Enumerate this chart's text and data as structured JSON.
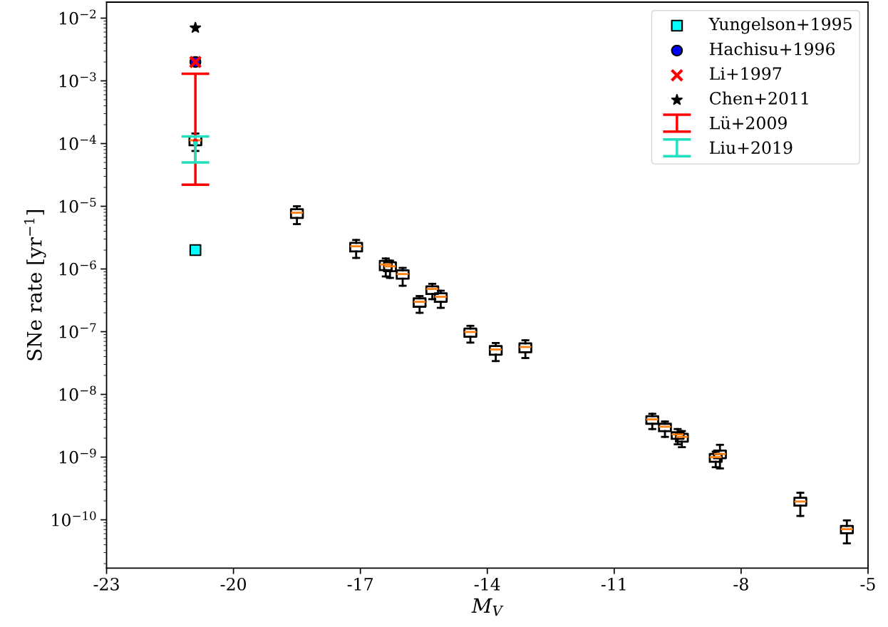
{
  "chart_data": {
    "type": "box",
    "xlabel": "M$_{V}$",
    "ylabel": "SNe rate [yr$^{−1}$]",
    "log": "y",
    "xlim": [
      -23,
      -5
    ],
    "xticks": [
      -23,
      -20,
      -17,
      -14,
      -11,
      -8,
      -5
    ],
    "ylim": [
      1.7e-11,
      0.018
    ],
    "yticks": [
      {
        "value": 1e-10,
        "label": "10$^{−10}$"
      },
      {
        "value": 1e-09,
        "label": "10$^{−9}$"
      },
      {
        "value": 1e-08,
        "label": "10$^{−8}$"
      },
      {
        "value": 1e-07,
        "label": "10$^{−7}$"
      },
      {
        "value": 1e-06,
        "label": "10$^{−6}$"
      },
      {
        "value": 1e-05,
        "label": "10$^{−5}$"
      },
      {
        "value": 0.0001,
        "label": "10$^{−4}$"
      },
      {
        "value": 0.001,
        "label": "10$^{−3}$"
      },
      {
        "value": 0.01,
        "label": "10$^{−2}$"
      }
    ],
    "grid": false,
    "legend": "top right",
    "series": [
      {
        "color": "#000000",
        "x": [
          -20.9,
          -18.5,
          -17.1,
          -16.4,
          -16.3,
          -16.0,
          -15.6,
          -15.3,
          -15.1,
          -14.4,
          -13.8,
          -13.1,
          -10.1,
          -9.8,
          -9.5,
          -9.4,
          -8.6,
          -8.5,
          -6.6,
          -5.5
        ],
        "boxes": [
          {
            "low": 7.6e-05,
            "q1": 9.4e-05,
            "median": 0.000113,
            "q3": 0.00013,
            "high": 0.000145
          },
          {
            "low": 5.2e-06,
            "q1": 6.5e-06,
            "median": 7.9e-06,
            "q3": 9e-06,
            "high": 1e-05
          },
          {
            "low": 1.5e-06,
            "q1": 1.9e-06,
            "median": 2.3e-06,
            "q3": 2.6e-06,
            "high": 2.9e-06
          },
          {
            "low": 7.6e-07,
            "q1": 9.6e-07,
            "median": 1.18e-06,
            "q3": 1.35e-06,
            "high": 1.47e-06
          },
          {
            "low": 7.2e-07,
            "q1": 9.2e-07,
            "median": 1.1e-06,
            "q3": 1.28e-06,
            "high": 1.36e-06
          },
          {
            "low": 5.4e-07,
            "q1": 7e-07,
            "median": 8.3e-07,
            "q3": 9.5e-07,
            "high": 1.04e-06
          },
          {
            "low": 2e-07,
            "q1": 2.5e-07,
            "median": 3e-07,
            "q3": 3.4e-07,
            "high": 3.7e-07
          },
          {
            "low": 3.3e-07,
            "q1": 4e-07,
            "median": 4.8e-07,
            "q3": 5.3e-07,
            "high": 5.8e-07
          },
          {
            "low": 2.4e-07,
            "q1": 3e-07,
            "median": 3.6e-07,
            "q3": 4.1e-07,
            "high": 4.5e-07
          },
          {
            "low": 6.7e-08,
            "q1": 8.3e-08,
            "median": 9.9e-08,
            "q3": 1.12e-07,
            "high": 1.24e-07
          },
          {
            "low": 3.4e-08,
            "q1": 4.3e-08,
            "median": 5.2e-08,
            "q3": 5.9e-08,
            "high": 6.6e-08
          },
          {
            "low": 3.8e-08,
            "q1": 4.7e-08,
            "median": 5.7e-08,
            "q3": 6.5e-08,
            "high": 7.3e-08
          },
          {
            "low": 2.8e-09,
            "q1": 3.4e-09,
            "median": 4e-09,
            "q3": 4.5e-09,
            "high": 4.9e-09
          },
          {
            "low": 2.1e-09,
            "q1": 2.6e-09,
            "median": 3.05e-09,
            "q3": 3.4e-09,
            "high": 3.7e-09
          },
          {
            "low": 1.6e-09,
            "q1": 1.96e-09,
            "median": 2.3e-09,
            "q3": 2.5e-09,
            "high": 2.8e-09
          },
          {
            "low": 1.44e-09,
            "q1": 1.76e-09,
            "median": 2.1e-09,
            "q3": 2.35e-09,
            "high": 2.6e-09
          },
          {
            "low": 6.9e-10,
            "q1": 8.4e-10,
            "median": 1e-09,
            "q3": 1.12e-09,
            "high": 1.22e-09
          },
          {
            "low": 6.6e-10,
            "q1": 9.6e-10,
            "median": 1.12e-09,
            "q3": 1.27e-09,
            "high": 1.57e-09
          },
          {
            "low": 1.15e-10,
            "q1": 1.68e-10,
            "median": 1.96e-10,
            "q3": 2.24e-10,
            "high": 2.7e-10
          },
          {
            "low": 4.2e-11,
            "q1": 6.1e-11,
            "median": 7.1e-11,
            "q3": 8e-11,
            "high": 9.8e-11
          }
        ]
      },
      {
        "type": "scatter",
        "name": "Yungelson+1995",
        "color": "#00ffff",
        "marker": "square",
        "x": [
          -20.9
        ],
        "values": [
          2e-06
        ]
      },
      {
        "type": "scatter",
        "name": "Hachisu+1996",
        "color": "#0000ff",
        "marker": "circle",
        "x": [
          -20.9
        ],
        "values": [
          0.002
        ]
      },
      {
        "type": "scatter",
        "name": "Li+1997",
        "color": "#ff0000",
        "marker": "cross",
        "x": [
          -20.9
        ],
        "values": [
          0.002
        ]
      },
      {
        "type": "scatter",
        "name": "Chen+2011",
        "color": "#000000",
        "marker": "star",
        "x": [
          -20.9
        ],
        "values": [
          0.007
        ]
      },
      {
        "type": "scatter",
        "name": "Lü+2009",
        "color": "#ff0000",
        "marker": "circle",
        "x": [
          -20.9
        ],
        "values": [
          0.00011
        ],
        "errors": [
          [
            2.2e-05,
            0.0013
          ]
        ]
      },
      {
        "type": "scatter",
        "name": "Liu+2019",
        "color": "#20e0c0",
        "marker": "circle",
        "x": [
          -20.9
        ],
        "values": [
          0.0001
        ],
        "errors": [
          [
            5e-05,
            0.00013
          ]
        ]
      }
    ]
  }
}
